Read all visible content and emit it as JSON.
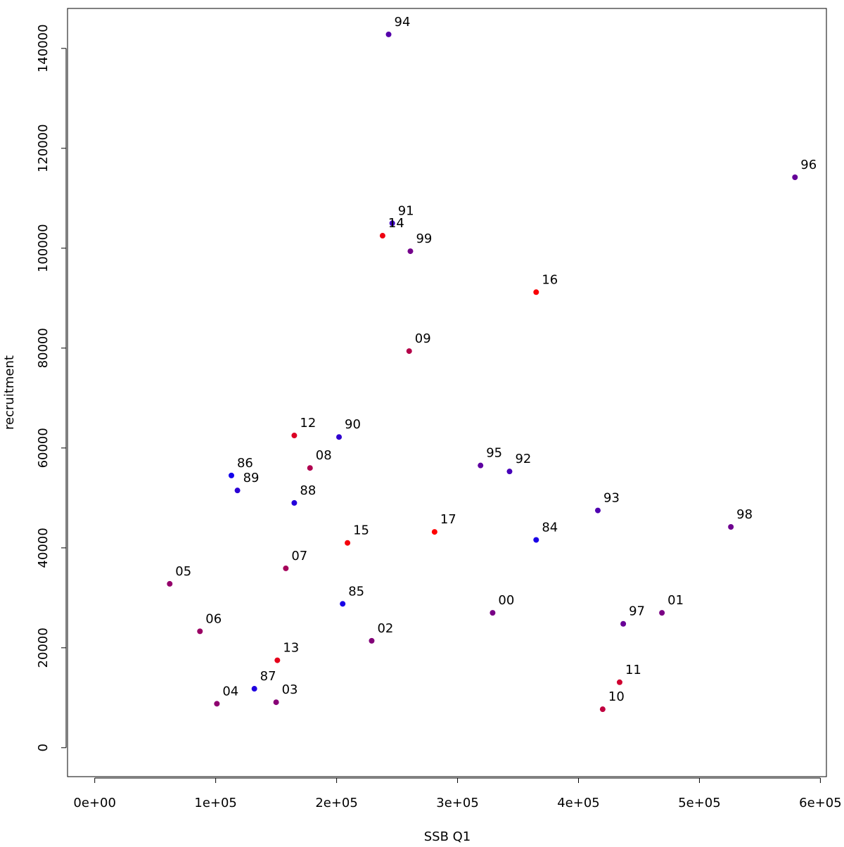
{
  "chart_data": {
    "type": "scatter",
    "title": "",
    "xlabel": "SSB Q1",
    "ylabel": "recruitment",
    "xlim": [
      -22500,
      605000
    ],
    "ylim": [
      -5800,
      148000
    ],
    "x_ticks": [
      0,
      100000,
      200000,
      300000,
      400000,
      500000,
      600000
    ],
    "x_tick_labels": [
      "0e+00",
      "1e+05",
      "2e+05",
      "3e+05",
      "4e+05",
      "5e+05",
      "6e+05"
    ],
    "y_ticks": [
      0,
      20000,
      40000,
      60000,
      80000,
      100000,
      120000,
      140000
    ],
    "y_tick_labels": [
      "0",
      "20000",
      "40000",
      "60000",
      "80000",
      "100000",
      "120000",
      "140000"
    ],
    "grid": false,
    "legend": "none",
    "color_scale": {
      "earliest": "#0000ff",
      "latest": "#ff0000"
    },
    "points": [
      {
        "label": "84",
        "x": 365000,
        "y": 41600,
        "color": "#1a00e6"
      },
      {
        "label": "85",
        "x": 205000,
        "y": 28800,
        "color": "#1800e7"
      },
      {
        "label": "86",
        "x": 113000,
        "y": 54500,
        "color": "#1400eb"
      },
      {
        "label": "87",
        "x": 132000,
        "y": 11800,
        "color": "#1f00e0"
      },
      {
        "label": "88",
        "x": 165000,
        "y": 49000,
        "color": "#2400db"
      },
      {
        "label": "89",
        "x": 118000,
        "y": 51500,
        "color": "#2a00d5"
      },
      {
        "label": "90",
        "x": 202000,
        "y": 62200,
        "color": "#3000cf"
      },
      {
        "label": "91",
        "x": 246000,
        "y": 105000,
        "color": "#3c00c3"
      },
      {
        "label": "92",
        "x": 343000,
        "y": 55300,
        "color": "#4600b9"
      },
      {
        "label": "93",
        "x": 416000,
        "y": 47500,
        "color": "#4f00b0"
      },
      {
        "label": "94",
        "x": 243000,
        "y": 142800,
        "color": "#5500aa"
      },
      {
        "label": "95",
        "x": 319000,
        "y": 56500,
        "color": "#5e00a1"
      },
      {
        "label": "96",
        "x": 579000,
        "y": 114200,
        "color": "#640098"
      },
      {
        "label": "97",
        "x": 437000,
        "y": 24800,
        "color": "#690096"
      },
      {
        "label": "98",
        "x": 526000,
        "y": 44200,
        "color": "#6e0090"
      },
      {
        "label": "99",
        "x": 261000,
        "y": 99400,
        "color": "#74008b"
      },
      {
        "label": "00",
        "x": 329000,
        "y": 27000,
        "color": "#780086"
      },
      {
        "label": "01",
        "x": 469000,
        "y": 27000,
        "color": "#7a0084"
      },
      {
        "label": "02",
        "x": 229000,
        "y": 21400,
        "color": "#820078"
      },
      {
        "label": "03",
        "x": 150000,
        "y": 9100,
        "color": "#880077"
      },
      {
        "label": "04",
        "x": 101000,
        "y": 8800,
        "color": "#8e0070"
      },
      {
        "label": "05",
        "x": 62000,
        "y": 32800,
        "color": "#94006b"
      },
      {
        "label": "06",
        "x": 87000,
        "y": 23300,
        "color": "#9a0064"
      },
      {
        "label": "07",
        "x": 158000,
        "y": 35900,
        "color": "#a5005a"
      },
      {
        "label": "08",
        "x": 178000,
        "y": 56000,
        "color": "#b0004f"
      },
      {
        "label": "09",
        "x": 260000,
        "y": 79400,
        "color": "#b40049"
      },
      {
        "label": "10",
        "x": 420000,
        "y": 7700,
        "color": "#c0003f"
      },
      {
        "label": "11",
        "x": 434000,
        "y": 13100,
        "color": "#cf0030"
      },
      {
        "label": "12",
        "x": 165000,
        "y": 62500,
        "color": "#db0024"
      },
      {
        "label": "13",
        "x": 151000,
        "y": 17500,
        "color": "#e5001a"
      },
      {
        "label": "14",
        "x": 238000,
        "y": 102500,
        "color": "#ee0011"
      },
      {
        "label": "15",
        "x": 209000,
        "y": 41000,
        "color": "#f4000b"
      },
      {
        "label": "16",
        "x": 365000,
        "y": 91200,
        "color": "#f90006"
      },
      {
        "label": "17",
        "x": 281000,
        "y": 43200,
        "color": "#ff0000"
      }
    ]
  }
}
